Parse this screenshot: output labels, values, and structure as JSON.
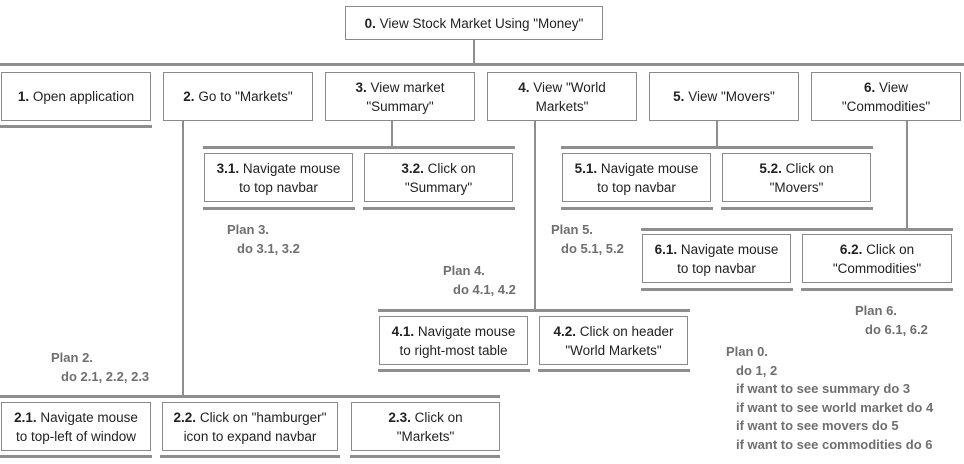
{
  "root": {
    "num": "0.",
    "text": " View Stock Market Using \"Money\""
  },
  "tasks": [
    {
      "id": "1",
      "num": "1.",
      "lines": [
        " Open application"
      ]
    },
    {
      "id": "2",
      "num": "2.",
      "lines": [
        " Go to \"Markets\""
      ]
    },
    {
      "id": "3",
      "num": "3.",
      "lines": [
        " View market",
        "\"Summary\""
      ]
    },
    {
      "id": "4",
      "num": "4.",
      "lines": [
        " View \"World",
        "Markets\""
      ]
    },
    {
      "id": "5",
      "num": "5.",
      "lines": [
        " View \"Movers\""
      ]
    },
    {
      "id": "6",
      "num": "6.",
      "lines": [
        " View",
        "\"Commodities\""
      ]
    },
    {
      "id": "3-1",
      "num": "3.1.",
      "lines": [
        " Navigate mouse",
        "to top navbar"
      ]
    },
    {
      "id": "3-2",
      "num": "3.2.",
      "lines": [
        " Click on",
        "\"Summary\""
      ]
    },
    {
      "id": "5-1",
      "num": "5.1.",
      "lines": [
        " Navigate mouse",
        "to top navbar"
      ]
    },
    {
      "id": "5-2",
      "num": "5.2.",
      "lines": [
        " Click on",
        "\"Movers\""
      ]
    },
    {
      "id": "6-1",
      "num": "6.1.",
      "lines": [
        " Navigate mouse",
        "to top navbar"
      ]
    },
    {
      "id": "6-2",
      "num": "6.2.",
      "lines": [
        " Click on",
        "\"Commodities\""
      ]
    },
    {
      "id": "4-1",
      "num": "4.1.",
      "lines": [
        " Navigate mouse",
        "to right-most table"
      ]
    },
    {
      "id": "4-2",
      "num": "4.2.",
      "lines": [
        " Click on header",
        "\"World Markets\""
      ]
    },
    {
      "id": "2-1",
      "num": "2.1.",
      "lines": [
        " Navigate mouse",
        "to top-left of window"
      ]
    },
    {
      "id": "2-2",
      "num": "2.2.",
      "lines": [
        " Click on \"hamburger\"",
        "icon to expand navbar"
      ]
    },
    {
      "id": "2-3",
      "num": "2.3.",
      "lines": [
        " Click on",
        "\"Markets\""
      ]
    }
  ],
  "plans": [
    {
      "id": "3",
      "title": "Plan 3.",
      "lines": [
        "do 3.1, 3.2"
      ]
    },
    {
      "id": "5",
      "title": "Plan 5.",
      "lines": [
        "do 5.1, 5.2"
      ]
    },
    {
      "id": "4",
      "title": "Plan 4.",
      "lines": [
        "do 4.1, 4.2"
      ]
    },
    {
      "id": "6",
      "title": "Plan 6.",
      "lines": [
        "do 6.1, 6.2"
      ]
    },
    {
      "id": "2",
      "title": "Plan 2.",
      "lines": [
        "do 2.1, 2.2, 2.3"
      ]
    },
    {
      "id": "0",
      "title": "Plan 0.",
      "lines": [
        "do 1, 2",
        "if want to see summary do 3",
        "if want to see world market do 4",
        "if want to see movers do 5",
        "if want to see commodities do 6"
      ]
    }
  ]
}
